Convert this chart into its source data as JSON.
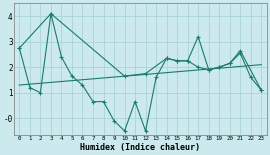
{
  "xlabel": "Humidex (Indice chaleur)",
  "bg_color": "#cce9ed",
  "grid_color": "#aad4d8",
  "line_color": "#1a7a6e",
  "xlim": [
    -0.5,
    23.5
  ],
  "ylim": [
    -0.65,
    4.5
  ],
  "line1_x": [
    0,
    1,
    2,
    3,
    4,
    5,
    6,
    7,
    8,
    9,
    10,
    11,
    12,
    13,
    14,
    15,
    16,
    17,
    18,
    19,
    20,
    21,
    22,
    23
  ],
  "line1_y": [
    2.75,
    1.2,
    1.0,
    4.1,
    2.4,
    1.65,
    1.3,
    0.65,
    0.65,
    -0.1,
    -0.5,
    0.65,
    -0.5,
    1.6,
    2.35,
    2.25,
    2.25,
    3.2,
    1.9,
    2.0,
    2.15,
    2.55,
    1.6,
    1.1
  ],
  "line2_x": [
    0,
    3,
    10,
    12,
    14,
    15,
    16,
    17,
    18,
    19,
    20,
    21,
    23
  ],
  "line2_y": [
    2.75,
    4.1,
    1.65,
    1.75,
    2.35,
    2.25,
    2.25,
    2.0,
    1.9,
    2.0,
    2.15,
    2.65,
    1.1
  ],
  "line3_x": [
    0,
    23
  ],
  "line3_y": [
    1.3,
    2.1
  ]
}
